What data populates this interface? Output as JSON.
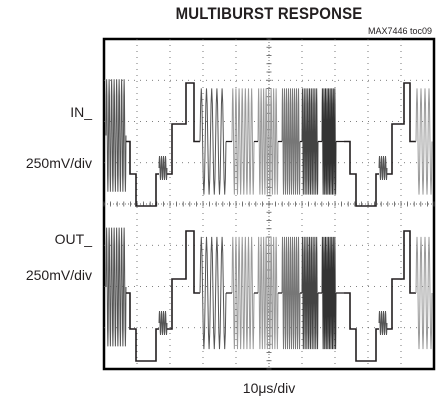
{
  "chart_data": {
    "type": "oscilloscope",
    "title": "MULTIBURST RESPONSE",
    "part_code": "MAX7446 toc09",
    "xlabel_prefix": "10",
    "xlabel_unit": "μs/div",
    "x_divisions": 10,
    "y_divisions": 8,
    "channels": [
      {
        "name": "IN_",
        "scale": "250mV/div",
        "bursts_relative_frequency": [
          1,
          2,
          3,
          4,
          5,
          6
        ],
        "burst_shading": [
          "#555555",
          "#9a9a9a",
          "#9a9a9a",
          "#777777",
          "#444444",
          "#333333"
        ]
      },
      {
        "name": "OUT_",
        "scale": "250mV/div",
        "bursts_relative_frequency": [
          1,
          2,
          3,
          4,
          5,
          6
        ],
        "burst_shading": [
          "#555555",
          "#9a9a9a",
          "#9a9a9a",
          "#777777",
          "#444444",
          "#333333"
        ]
      }
    ],
    "colors": {
      "trace": "#231f20",
      "frame": "#000000",
      "grid": "#555555"
    }
  }
}
